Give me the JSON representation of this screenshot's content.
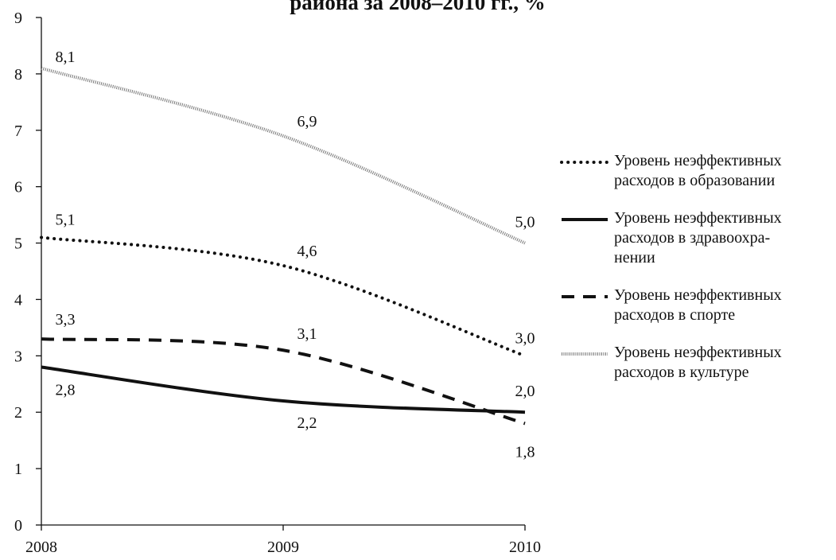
{
  "chart_data": {
    "type": "line",
    "title": "района за 2008–2010 гг., %",
    "x": [
      "2008",
      "2009",
      "2010"
    ],
    "ylim": [
      0,
      9
    ],
    "yticks": [
      "0",
      "1",
      "2",
      "3",
      "4",
      "5",
      "6",
      "7",
      "8",
      "9"
    ],
    "grid": false,
    "legend_position": "right",
    "series": [
      {
        "name": "Уровень неэффективных расходов в образовании",
        "style": "dotted",
        "color": "#111111",
        "values": [
          5.1,
          4.6,
          3.0
        ],
        "labels": [
          "5,1",
          "4,6",
          "3,0"
        ]
      },
      {
        "name": "Уровень неэффективных расходов в здравоохра-нении",
        "style": "solid",
        "color": "#111111",
        "values": [
          2.8,
          2.2,
          2.0
        ],
        "labels": [
          "2,8",
          "2,2",
          "2,0"
        ]
      },
      {
        "name": "Уровень неэффективных расходов в спорте",
        "style": "dashed",
        "color": "#111111",
        "values": [
          3.3,
          3.1,
          1.8
        ],
        "labels": [
          "3,3",
          "3,1",
          "1,8"
        ]
      },
      {
        "name": "Уровень неэффективных расходов в культуре",
        "style": "hatched",
        "color": "#888888",
        "values": [
          8.1,
          6.9,
          5.0
        ],
        "labels": [
          "8,1",
          "6,9",
          "5,0"
        ]
      }
    ]
  },
  "legend": {
    "items": [
      {
        "line1": "Уровень неэффективных",
        "line2": "расходов в образовании",
        "line3": ""
      },
      {
        "line1": "Уровень неэффективных",
        "line2": "расходов в здравоохра-",
        "line3": "нении"
      },
      {
        "line1": "Уровень неэффективных",
        "line2": "расходов в спорте",
        "line3": ""
      },
      {
        "line1": "Уровень неэффективных",
        "line2": "расходов в культуре",
        "line3": ""
      }
    ]
  }
}
